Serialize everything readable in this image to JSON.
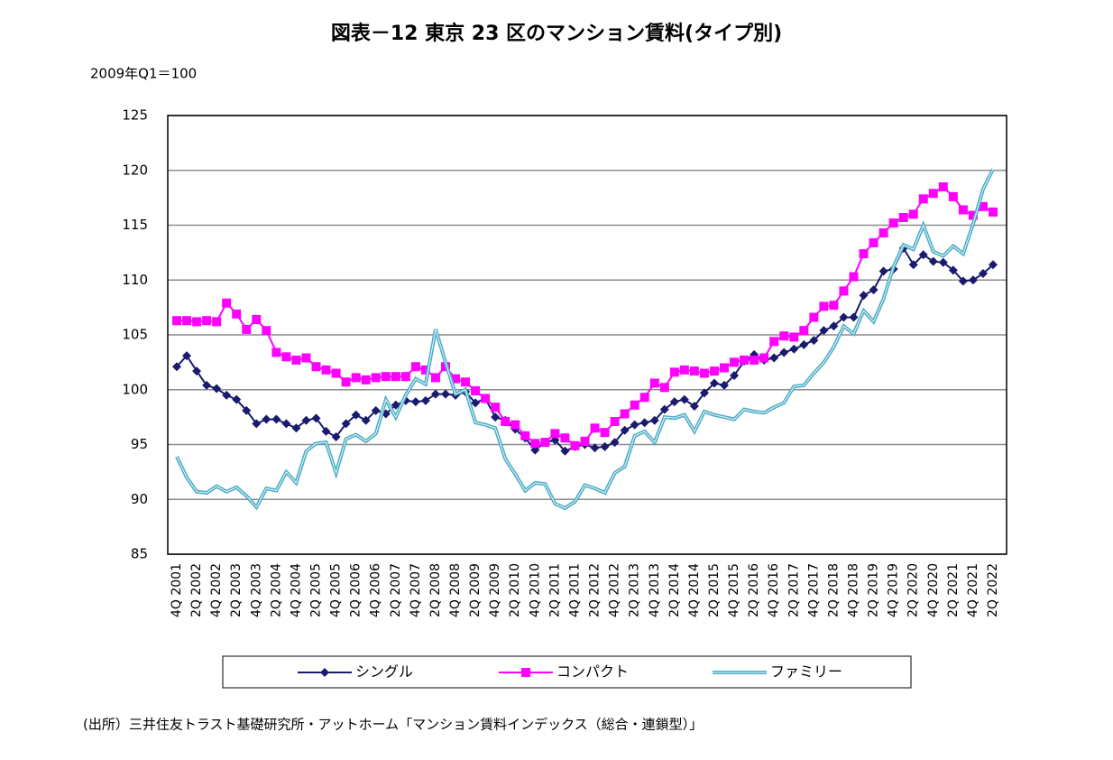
{
  "chart_data": {
    "type": "line",
    "title": "図表－12 東京 23 区のマンション賃料(タイプ別)",
    "y_label": "2009年Q1＝100",
    "source": "(出所）三井住友トラスト基礎研究所・アットホーム「マンション賃料インデックス（総合・連鎖型）」",
    "ylim": [
      85,
      125
    ],
    "yticks": [
      85,
      90,
      95,
      100,
      105,
      110,
      115,
      120,
      125
    ],
    "grid": true,
    "legend": "bottom",
    "categories": [
      "4Q 2001",
      null,
      "2Q 2002",
      null,
      "4Q 2002",
      null,
      "2Q 2003",
      null,
      "4Q 2003",
      null,
      "2Q 2004",
      null,
      "4Q 2004",
      null,
      "2Q 2005",
      null,
      "4Q 2005",
      null,
      "2Q 2006",
      null,
      "4Q 2006",
      null,
      "2Q 2007",
      null,
      "4Q 2007",
      null,
      "2Q 2008",
      null,
      "4Q 2008",
      null,
      "2Q 2009",
      null,
      "4Q 2009",
      null,
      "2Q 2010",
      null,
      "4Q 2010",
      null,
      "2Q 2011",
      null,
      "4Q 2011",
      null,
      "2Q 2012",
      null,
      "4Q 2012",
      null,
      "2Q 2013",
      null,
      "4Q 2013",
      null,
      "2Q 2014",
      null,
      "4Q 2014",
      null,
      "2Q 2015",
      null,
      "4Q 2015",
      null,
      "2Q 2016",
      null,
      "4Q 2016",
      null,
      "2Q 2017",
      null,
      "4Q 2017",
      null,
      "2Q 2018",
      null,
      "4Q 2018",
      null,
      "2Q 2019",
      null,
      "4Q 2019",
      null,
      "2Q 2020",
      null,
      "4Q 2020",
      null,
      "2Q 2021",
      null,
      "4Q 2021",
      null,
      "2Q 2022"
    ],
    "series": [
      {
        "name": "シングル",
        "color": "#1a1a6e",
        "marker": "diamond",
        "values": [
          102.1,
          103.1,
          101.7,
          100.4,
          100.1,
          99.5,
          99.1,
          98.1,
          96.9,
          97.3,
          97.3,
          96.9,
          96.5,
          97.2,
          97.4,
          96.2,
          95.7,
          96.9,
          97.7,
          97.2,
          98.1,
          97.8,
          98.6,
          99.0,
          98.9,
          99.0,
          99.6,
          99.6,
          99.5,
          99.8,
          98.8,
          99.2,
          97.5,
          97.2,
          96.4,
          95.6,
          94.5,
          95.2,
          95.4,
          94.4,
          94.8,
          95.0,
          94.7,
          94.8,
          95.2,
          96.3,
          96.8,
          97.0,
          97.2,
          98.2,
          98.9,
          99.1,
          98.5,
          99.7,
          100.6,
          100.4,
          101.3,
          102.6,
          103.2,
          102.7,
          102.9,
          103.4,
          103.7,
          104.1,
          104.5,
          105.4,
          105.8,
          106.6,
          106.6,
          108.6,
          109.1,
          110.8,
          111.0,
          112.9,
          111.4,
          112.3,
          111.7,
          111.6,
          110.9,
          109.9,
          110.0,
          110.6,
          111.4
        ]
      },
      {
        "name": "コンパクト",
        "color": "#ff00ff",
        "marker": "square",
        "values": [
          106.3,
          106.3,
          106.2,
          106.3,
          106.2,
          107.9,
          106.9,
          105.5,
          106.4,
          105.4,
          103.4,
          103.0,
          102.7,
          102.9,
          102.1,
          101.8,
          101.5,
          100.7,
          101.1,
          100.9,
          101.1,
          101.2,
          101.2,
          101.2,
          102.1,
          101.8,
          101.1,
          102.1,
          101.0,
          100.7,
          99.9,
          99.2,
          98.4,
          97.1,
          96.8,
          95.8,
          95.1,
          95.2,
          96.0,
          95.6,
          94.9,
          95.3,
          96.5,
          96.1,
          97.1,
          97.8,
          98.6,
          99.3,
          100.6,
          100.2,
          101.6,
          101.8,
          101.7,
          101.5,
          101.7,
          102.0,
          102.5,
          102.7,
          102.7,
          102.9,
          104.4,
          104.9,
          104.8,
          105.4,
          106.6,
          107.6,
          107.7,
          109.0,
          110.3,
          112.4,
          113.4,
          114.3,
          115.2,
          115.7,
          116.0,
          117.4,
          117.9,
          118.5,
          117.6,
          116.4,
          115.9,
          116.7,
          116.2
        ]
      },
      {
        "name": "ファミリー",
        "color": "#4bacc6",
        "marker": "none",
        "values": [
          93.9,
          92.0,
          90.7,
          90.6,
          91.2,
          90.7,
          91.1,
          90.3,
          89.3,
          91.0,
          90.8,
          92.5,
          91.5,
          94.4,
          95.1,
          95.2,
          92.4,
          95.5,
          95.9,
          95.3,
          96.0,
          99.1,
          97.5,
          99.5,
          101.0,
          100.5,
          105.5,
          102.5,
          99.6,
          100.0,
          97.0,
          96.8,
          96.5,
          93.7,
          92.3,
          90.8,
          91.5,
          91.4,
          89.6,
          89.2,
          89.8,
          91.3,
          91.0,
          90.6,
          92.4,
          93.0,
          95.8,
          96.2,
          95.2,
          97.5,
          97.4,
          97.7,
          96.2,
          98.0,
          97.7,
          97.5,
          97.3,
          98.2,
          98.0,
          97.9,
          98.4,
          98.8,
          100.3,
          100.4,
          101.5,
          102.5,
          103.9,
          105.8,
          105.1,
          107.2,
          106.2,
          108.3,
          111.2,
          113.2,
          112.8,
          115.0,
          112.6,
          112.2,
          113.1,
          112.4,
          115.1,
          118.3,
          120.1
        ]
      }
    ]
  }
}
